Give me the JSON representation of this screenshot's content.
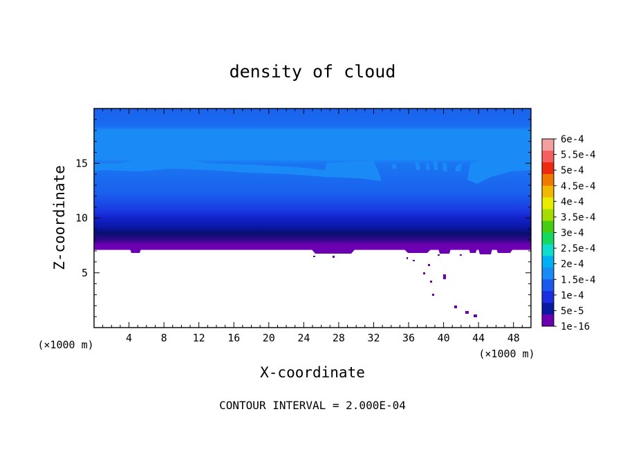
{
  "chart_data": {
    "type": "heatmap",
    "title": "density of cloud",
    "xlabel": "X-coordinate",
    "ylabel": "Z-coordinate",
    "x_unit": "(×1000 m)",
    "y_unit": "(×1000 m)",
    "xlim": [
      0,
      50
    ],
    "ylim": [
      0,
      20
    ],
    "x_ticks": [
      "4",
      "8",
      "12",
      "16",
      "20",
      "24",
      "28",
      "32",
      "36",
      "40",
      "44",
      "48"
    ],
    "y_ticks": [
      "5",
      "10",
      "15"
    ],
    "footer": "CONTOUR INTERVAL = 2.000E-04",
    "colorbar": {
      "labels": [
        "6e-4",
        "5.5e-4",
        "5e-4",
        "4.5e-4",
        "4e-4",
        "3.5e-4",
        "3e-4",
        "2.5e-4",
        "2e-4",
        "1.5e-4",
        "1e-4",
        "5e-5",
        "1e-16"
      ],
      "colors": [
        "#f4a0a0",
        "#f46060",
        "#ee2a10",
        "#f07a00",
        "#f2b800",
        "#e8ec00",
        "#a6dc00",
        "#46cc10",
        "#14d860",
        "#10dccc",
        "#00b0f4",
        "#1a8af6",
        "#1a58ee",
        "#1a2ee0",
        "#0a1aa0",
        "#6a00b0"
      ]
    },
    "field_profile_z_vs_value": [
      {
        "z": 7.1,
        "value": 1e-16
      },
      {
        "z": 7.5,
        "value": 2e-05
      },
      {
        "z": 8.0,
        "value": 3e-05
      },
      {
        "z": 8.5,
        "value": 5e-05
      },
      {
        "z": 9.5,
        "value": 8e-05
      },
      {
        "z": 11.0,
        "value": 0.0001
      },
      {
        "z": 14.5,
        "value": 0.00013
      },
      {
        "z": 15.0,
        "value": 0.00015
      },
      {
        "z": 18.0,
        "value": 0.00012
      },
      {
        "z": 20.0,
        "value": 0.00011
      }
    ]
  }
}
